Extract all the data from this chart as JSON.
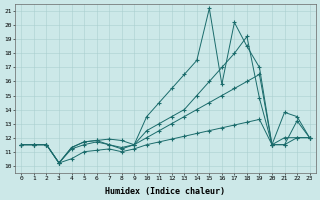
{
  "xlabel": "Humidex (Indice chaleur)",
  "xlim": [
    -0.5,
    23.5
  ],
  "ylim": [
    9.5,
    21.5
  ],
  "yticks": [
    10,
    11,
    12,
    13,
    14,
    15,
    16,
    17,
    18,
    19,
    20,
    21
  ],
  "xticks": [
    0,
    1,
    2,
    3,
    4,
    5,
    6,
    7,
    8,
    9,
    10,
    11,
    12,
    13,
    14,
    15,
    16,
    17,
    18,
    19,
    20,
    21,
    22,
    23
  ],
  "bg_color": "#cce8e8",
  "line_color": "#1a6b6b",
  "grid_color": "#aacfcf",
  "lines": [
    {
      "x": [
        0,
        1,
        2,
        3,
        4,
        5,
        6,
        7,
        8,
        9,
        10,
        11,
        12,
        13,
        14,
        15,
        16,
        17,
        18,
        19,
        20,
        21,
        22,
        23
      ],
      "y": [
        11.5,
        11.5,
        11.5,
        10.2,
        10.5,
        11.0,
        11.1,
        11.2,
        11.0,
        11.2,
        11.5,
        11.7,
        11.9,
        12.1,
        12.3,
        12.5,
        12.7,
        12.9,
        13.1,
        13.3,
        11.5,
        11.5,
        12.0,
        12.0
      ]
    },
    {
      "x": [
        0,
        1,
        2,
        3,
        4,
        5,
        6,
        7,
        8,
        9,
        10,
        11,
        12,
        13,
        14,
        15,
        16,
        17,
        18,
        19,
        20,
        21,
        22,
        23
      ],
      "y": [
        11.5,
        11.5,
        11.5,
        10.2,
        11.2,
        11.5,
        11.7,
        11.5,
        11.2,
        11.5,
        12.0,
        12.5,
        13.0,
        13.5,
        14.0,
        14.5,
        15.0,
        15.5,
        16.0,
        16.5,
        11.5,
        12.0,
        12.0,
        12.0
      ]
    },
    {
      "x": [
        0,
        1,
        2,
        3,
        4,
        5,
        6,
        7,
        8,
        9,
        10,
        11,
        12,
        13,
        14,
        15,
        16,
        17,
        18,
        19,
        20,
        21,
        22,
        23
      ],
      "y": [
        11.5,
        11.5,
        11.5,
        10.2,
        11.3,
        11.7,
        11.8,
        11.5,
        11.3,
        11.5,
        12.5,
        13.0,
        13.5,
        14.0,
        15.0,
        16.0,
        17.0,
        18.0,
        19.2,
        14.8,
        11.5,
        13.8,
        13.5,
        12.0
      ]
    },
    {
      "x": [
        0,
        1,
        2,
        3,
        4,
        5,
        6,
        7,
        8,
        9,
        10,
        11,
        12,
        13,
        14,
        15,
        16,
        17,
        18,
        19,
        20,
        21,
        22,
        23
      ],
      "y": [
        11.5,
        11.5,
        11.5,
        10.2,
        11.3,
        11.7,
        11.8,
        11.9,
        11.8,
        11.5,
        13.5,
        14.5,
        15.5,
        16.5,
        17.5,
        21.2,
        15.8,
        20.2,
        18.5,
        17.0,
        11.5,
        11.5,
        13.2,
        12.0
      ]
    }
  ]
}
